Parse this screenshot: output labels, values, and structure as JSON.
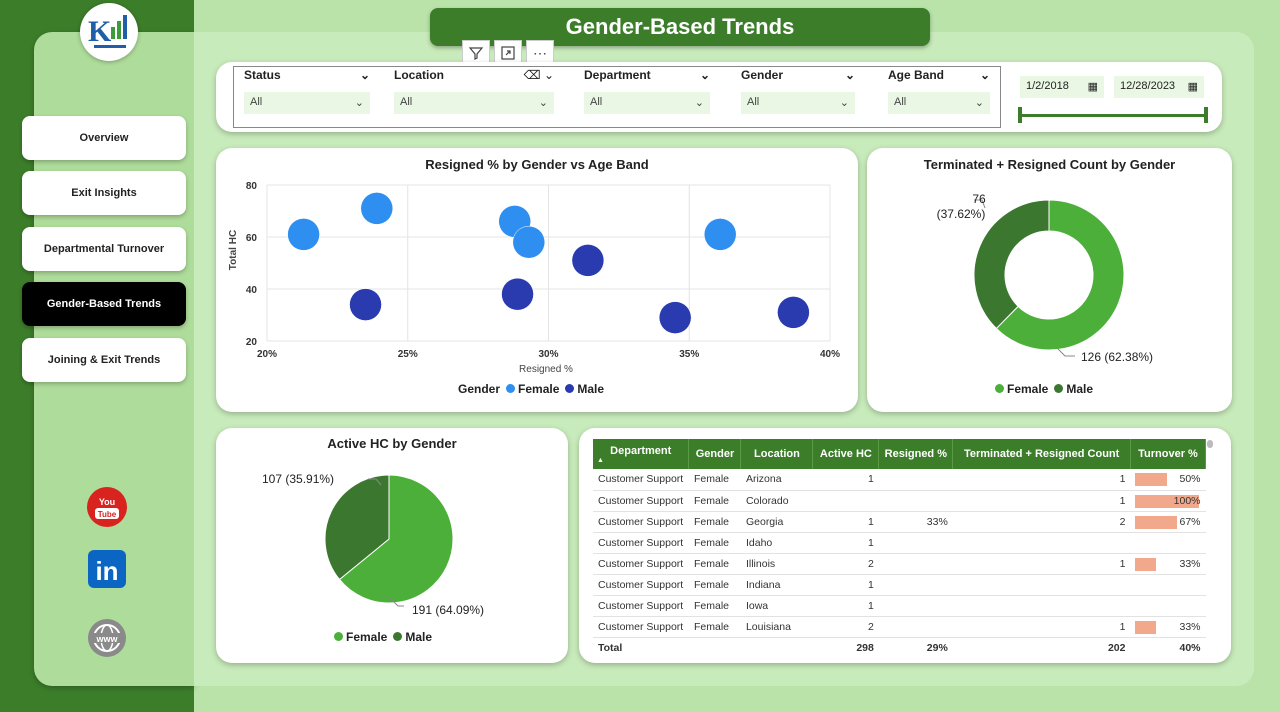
{
  "title": "Gender-Based Trends",
  "nav": [
    {
      "label": "Overview",
      "active": false
    },
    {
      "label": "Exit Insights",
      "active": false
    },
    {
      "label": "Departmental Turnover",
      "active": false
    },
    {
      "label": "Gender-Based Trends",
      "active": true
    },
    {
      "label": "Joining & Exit Trends",
      "active": false
    }
  ],
  "social": {
    "youtube": "You",
    "youtube2": "Tube",
    "linkedin": "in",
    "web": "www"
  },
  "filters": {
    "status": {
      "label": "Status",
      "value": "All"
    },
    "location": {
      "label": "Location",
      "value": "All"
    },
    "department": {
      "label": "Department",
      "value": "All"
    },
    "gender": {
      "label": "Gender",
      "value": "All"
    },
    "age_band": {
      "label": "Age Band",
      "value": "All"
    },
    "date_start": "1/2/2018",
    "date_end": "12/28/2023"
  },
  "colors": {
    "female_scatter": "#2e8ff0",
    "male_scatter": "#2a3bb0",
    "female": "#4caf3a",
    "male": "#3c7730",
    "accent": "#3c7d2a"
  },
  "chart_data": [
    {
      "type": "scatter",
      "title": "Resigned % by Gender vs Age Band",
      "xlabel": "Resigned %",
      "ylabel": "Total HC",
      "xlim": [
        20,
        40
      ],
      "ylim": [
        20,
        80
      ],
      "xticks": [
        "20%",
        "25%",
        "30%",
        "35%",
        "40%"
      ],
      "yticks": [
        "20",
        "40",
        "60",
        "80"
      ],
      "legend_title": "Gender",
      "series": [
        {
          "name": "Female",
          "points": [
            [
              21.3,
              61
            ],
            [
              23.9,
              71
            ],
            [
              28.8,
              66
            ],
            [
              29.3,
              58
            ],
            [
              36.1,
              61
            ]
          ]
        },
        {
          "name": "Male",
          "points": [
            [
              23.5,
              34
            ],
            [
              28.9,
              38
            ],
            [
              31.4,
              51
            ],
            [
              34.5,
              29
            ],
            [
              38.7,
              31
            ]
          ]
        }
      ]
    },
    {
      "type": "pie",
      "title": "Terminated + Resigned Count by Gender",
      "donut": true,
      "slices": [
        {
          "name": "Female",
          "value": 126,
          "label": "126 (62.38%)"
        },
        {
          "name": "Male",
          "value": 76,
          "label": "76",
          "label2": "(37.62%)"
        }
      ]
    },
    {
      "type": "pie",
      "title": "Active HC by Gender",
      "slices": [
        {
          "name": "Female",
          "value": 191,
          "label": "191 (64.09%)"
        },
        {
          "name": "Male",
          "value": 107,
          "label": "107 (35.91%)"
        }
      ]
    },
    {
      "type": "table",
      "columns": [
        "Department",
        "Gender",
        "Location",
        "Active HC",
        "Resigned %",
        "Terminated + Resigned Count",
        "Turnover %"
      ],
      "rows": [
        {
          "department": "Customer Support",
          "gender": "Female",
          "location": "Arizona",
          "active_hc": "1",
          "resigned": "",
          "term_res": "1",
          "turnover": "50%",
          "turnover_value": 50
        },
        {
          "department": "Customer Support",
          "gender": "Female",
          "location": "Colorado",
          "active_hc": "",
          "resigned": "",
          "term_res": "1",
          "turnover": "100%",
          "turnover_value": 100
        },
        {
          "department": "Customer Support",
          "gender": "Female",
          "location": "Georgia",
          "active_hc": "1",
          "resigned": "33%",
          "term_res": "2",
          "turnover": "67%",
          "turnover_value": 67
        },
        {
          "department": "Customer Support",
          "gender": "Female",
          "location": "Idaho",
          "active_hc": "1",
          "resigned": "",
          "term_res": "",
          "turnover": "",
          "turnover_value": 0
        },
        {
          "department": "Customer Support",
          "gender": "Female",
          "location": "Illinois",
          "active_hc": "2",
          "resigned": "",
          "term_res": "1",
          "turnover": "33%",
          "turnover_value": 33
        },
        {
          "department": "Customer Support",
          "gender": "Female",
          "location": "Indiana",
          "active_hc": "1",
          "resigned": "",
          "term_res": "",
          "turnover": "",
          "turnover_value": 0
        },
        {
          "department": "Customer Support",
          "gender": "Female",
          "location": "Iowa",
          "active_hc": "1",
          "resigned": "",
          "term_res": "",
          "turnover": "",
          "turnover_value": 0
        },
        {
          "department": "Customer Support",
          "gender": "Female",
          "location": "Louisiana",
          "active_hc": "2",
          "resigned": "",
          "term_res": "1",
          "turnover": "33%",
          "turnover_value": 33
        }
      ],
      "total": {
        "label": "Total",
        "active_hc": "298",
        "resigned": "29%",
        "term_res": "202",
        "turnover": "40%"
      }
    }
  ]
}
